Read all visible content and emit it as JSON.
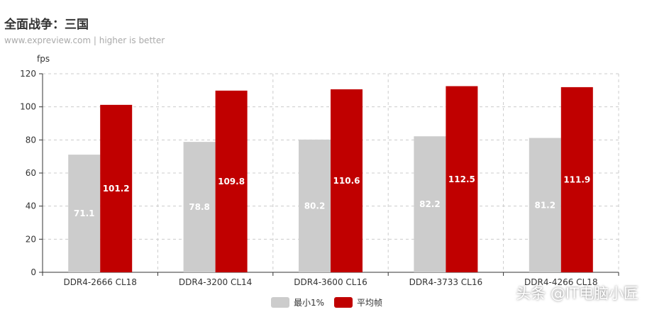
{
  "header": {
    "title": "全面战争：三国",
    "subtitle": "www.expreview.com | higher is better"
  },
  "watermark": "头条 @IT电脑小匠",
  "chart_data": {
    "type": "bar",
    "ylabel": "fps",
    "ylim": [
      0,
      120
    ],
    "yticks": [
      0,
      20,
      40,
      60,
      80,
      100,
      120
    ],
    "categories": [
      "DDR4-2666 CL18",
      "DDR4-3200 CL14",
      "DDR4-3600 CL16",
      "DDR4-3733 CL16",
      "DDR4-4266 CL18"
    ],
    "series": [
      {
        "name": "最小1%",
        "color": "#cccccc",
        "values": [
          71.1,
          78.8,
          80.2,
          82.2,
          81.2
        ]
      },
      {
        "name": "平均帧",
        "color": "#c00000",
        "values": [
          101.2,
          109.8,
          110.6,
          112.5,
          111.9
        ]
      }
    ],
    "grid": true,
    "legend": "bottom-center"
  }
}
